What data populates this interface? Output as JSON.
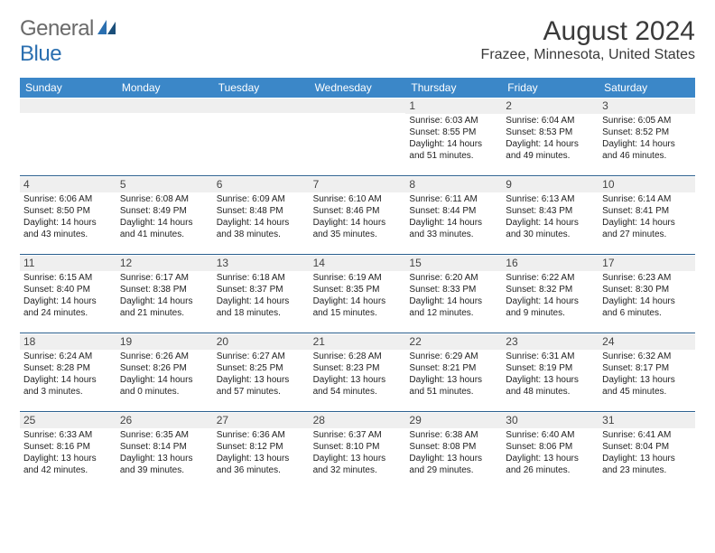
{
  "logo": {
    "word1": "General",
    "word2": "Blue"
  },
  "header": {
    "title": "August 2024",
    "location": "Frazee, Minnesota, United States"
  },
  "colors": {
    "header_bg": "#3b87c8",
    "header_text": "#ffffff",
    "rule": "#2b5f8e",
    "daynum_bg": "#efefef",
    "logo_gray": "#6a6a6a",
    "logo_blue": "#2b6fb0"
  },
  "dayNames": [
    "Sunday",
    "Monday",
    "Tuesday",
    "Wednesday",
    "Thursday",
    "Friday",
    "Saturday"
  ],
  "weeks": [
    [
      {
        "day": "",
        "sunrise": "",
        "sunset": "",
        "daylight": ""
      },
      {
        "day": "",
        "sunrise": "",
        "sunset": "",
        "daylight": ""
      },
      {
        "day": "",
        "sunrise": "",
        "sunset": "",
        "daylight": ""
      },
      {
        "day": "",
        "sunrise": "",
        "sunset": "",
        "daylight": ""
      },
      {
        "day": "1",
        "sunrise": "Sunrise: 6:03 AM",
        "sunset": "Sunset: 8:55 PM",
        "daylight": "Daylight: 14 hours and 51 minutes."
      },
      {
        "day": "2",
        "sunrise": "Sunrise: 6:04 AM",
        "sunset": "Sunset: 8:53 PM",
        "daylight": "Daylight: 14 hours and 49 minutes."
      },
      {
        "day": "3",
        "sunrise": "Sunrise: 6:05 AM",
        "sunset": "Sunset: 8:52 PM",
        "daylight": "Daylight: 14 hours and 46 minutes."
      }
    ],
    [
      {
        "day": "4",
        "sunrise": "Sunrise: 6:06 AM",
        "sunset": "Sunset: 8:50 PM",
        "daylight": "Daylight: 14 hours and 43 minutes."
      },
      {
        "day": "5",
        "sunrise": "Sunrise: 6:08 AM",
        "sunset": "Sunset: 8:49 PM",
        "daylight": "Daylight: 14 hours and 41 minutes."
      },
      {
        "day": "6",
        "sunrise": "Sunrise: 6:09 AM",
        "sunset": "Sunset: 8:48 PM",
        "daylight": "Daylight: 14 hours and 38 minutes."
      },
      {
        "day": "7",
        "sunrise": "Sunrise: 6:10 AM",
        "sunset": "Sunset: 8:46 PM",
        "daylight": "Daylight: 14 hours and 35 minutes."
      },
      {
        "day": "8",
        "sunrise": "Sunrise: 6:11 AM",
        "sunset": "Sunset: 8:44 PM",
        "daylight": "Daylight: 14 hours and 33 minutes."
      },
      {
        "day": "9",
        "sunrise": "Sunrise: 6:13 AM",
        "sunset": "Sunset: 8:43 PM",
        "daylight": "Daylight: 14 hours and 30 minutes."
      },
      {
        "day": "10",
        "sunrise": "Sunrise: 6:14 AM",
        "sunset": "Sunset: 8:41 PM",
        "daylight": "Daylight: 14 hours and 27 minutes."
      }
    ],
    [
      {
        "day": "11",
        "sunrise": "Sunrise: 6:15 AM",
        "sunset": "Sunset: 8:40 PM",
        "daylight": "Daylight: 14 hours and 24 minutes."
      },
      {
        "day": "12",
        "sunrise": "Sunrise: 6:17 AM",
        "sunset": "Sunset: 8:38 PM",
        "daylight": "Daylight: 14 hours and 21 minutes."
      },
      {
        "day": "13",
        "sunrise": "Sunrise: 6:18 AM",
        "sunset": "Sunset: 8:37 PM",
        "daylight": "Daylight: 14 hours and 18 minutes."
      },
      {
        "day": "14",
        "sunrise": "Sunrise: 6:19 AM",
        "sunset": "Sunset: 8:35 PM",
        "daylight": "Daylight: 14 hours and 15 minutes."
      },
      {
        "day": "15",
        "sunrise": "Sunrise: 6:20 AM",
        "sunset": "Sunset: 8:33 PM",
        "daylight": "Daylight: 14 hours and 12 minutes."
      },
      {
        "day": "16",
        "sunrise": "Sunrise: 6:22 AM",
        "sunset": "Sunset: 8:32 PM",
        "daylight": "Daylight: 14 hours and 9 minutes."
      },
      {
        "day": "17",
        "sunrise": "Sunrise: 6:23 AM",
        "sunset": "Sunset: 8:30 PM",
        "daylight": "Daylight: 14 hours and 6 minutes."
      }
    ],
    [
      {
        "day": "18",
        "sunrise": "Sunrise: 6:24 AM",
        "sunset": "Sunset: 8:28 PM",
        "daylight": "Daylight: 14 hours and 3 minutes."
      },
      {
        "day": "19",
        "sunrise": "Sunrise: 6:26 AM",
        "sunset": "Sunset: 8:26 PM",
        "daylight": "Daylight: 14 hours and 0 minutes."
      },
      {
        "day": "20",
        "sunrise": "Sunrise: 6:27 AM",
        "sunset": "Sunset: 8:25 PM",
        "daylight": "Daylight: 13 hours and 57 minutes."
      },
      {
        "day": "21",
        "sunrise": "Sunrise: 6:28 AM",
        "sunset": "Sunset: 8:23 PM",
        "daylight": "Daylight: 13 hours and 54 minutes."
      },
      {
        "day": "22",
        "sunrise": "Sunrise: 6:29 AM",
        "sunset": "Sunset: 8:21 PM",
        "daylight": "Daylight: 13 hours and 51 minutes."
      },
      {
        "day": "23",
        "sunrise": "Sunrise: 6:31 AM",
        "sunset": "Sunset: 8:19 PM",
        "daylight": "Daylight: 13 hours and 48 minutes."
      },
      {
        "day": "24",
        "sunrise": "Sunrise: 6:32 AM",
        "sunset": "Sunset: 8:17 PM",
        "daylight": "Daylight: 13 hours and 45 minutes."
      }
    ],
    [
      {
        "day": "25",
        "sunrise": "Sunrise: 6:33 AM",
        "sunset": "Sunset: 8:16 PM",
        "daylight": "Daylight: 13 hours and 42 minutes."
      },
      {
        "day": "26",
        "sunrise": "Sunrise: 6:35 AM",
        "sunset": "Sunset: 8:14 PM",
        "daylight": "Daylight: 13 hours and 39 minutes."
      },
      {
        "day": "27",
        "sunrise": "Sunrise: 6:36 AM",
        "sunset": "Sunset: 8:12 PM",
        "daylight": "Daylight: 13 hours and 36 minutes."
      },
      {
        "day": "28",
        "sunrise": "Sunrise: 6:37 AM",
        "sunset": "Sunset: 8:10 PM",
        "daylight": "Daylight: 13 hours and 32 minutes."
      },
      {
        "day": "29",
        "sunrise": "Sunrise: 6:38 AM",
        "sunset": "Sunset: 8:08 PM",
        "daylight": "Daylight: 13 hours and 29 minutes."
      },
      {
        "day": "30",
        "sunrise": "Sunrise: 6:40 AM",
        "sunset": "Sunset: 8:06 PM",
        "daylight": "Daylight: 13 hours and 26 minutes."
      },
      {
        "day": "31",
        "sunrise": "Sunrise: 6:41 AM",
        "sunset": "Sunset: 8:04 PM",
        "daylight": "Daylight: 13 hours and 23 minutes."
      }
    ]
  ]
}
